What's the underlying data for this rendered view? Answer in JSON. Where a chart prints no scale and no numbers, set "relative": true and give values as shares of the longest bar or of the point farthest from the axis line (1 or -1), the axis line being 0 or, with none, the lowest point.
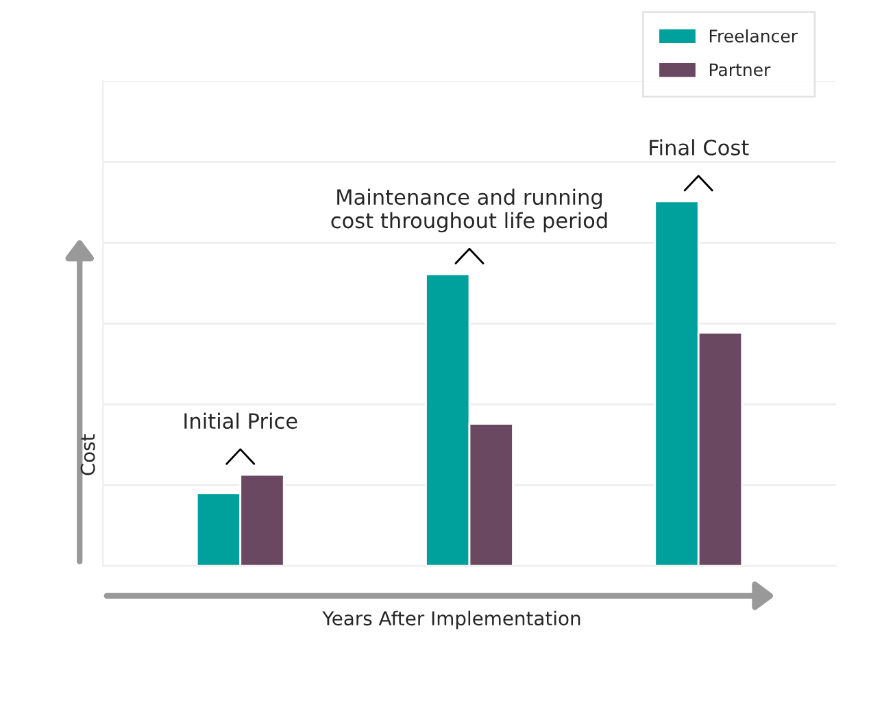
{
  "chart_data": {
    "type": "bar",
    "relative": true,
    "categories": [
      null,
      null,
      null
    ],
    "xlabel": "Years After Implementation",
    "ylabel": "Cost",
    "series": [
      {
        "name": "Freelancer",
        "color": "#00a09d",
        "values": [
          0.2,
          0.8,
          1
        ]
      },
      {
        "name": "Partner",
        "color": "#6b4862",
        "values": [
          0.25,
          0.39,
          0.64
        ]
      }
    ],
    "annotations": [
      {
        "text": "Initial Price",
        "y": 0.25
      },
      {
        "text": "Maintenance and running\ncost throughout life period",
        "y": 0.8
      },
      {
        "text": "Final Cost",
        "y": 1
      }
    ],
    "grid": "y",
    "legend": "top right"
  }
}
